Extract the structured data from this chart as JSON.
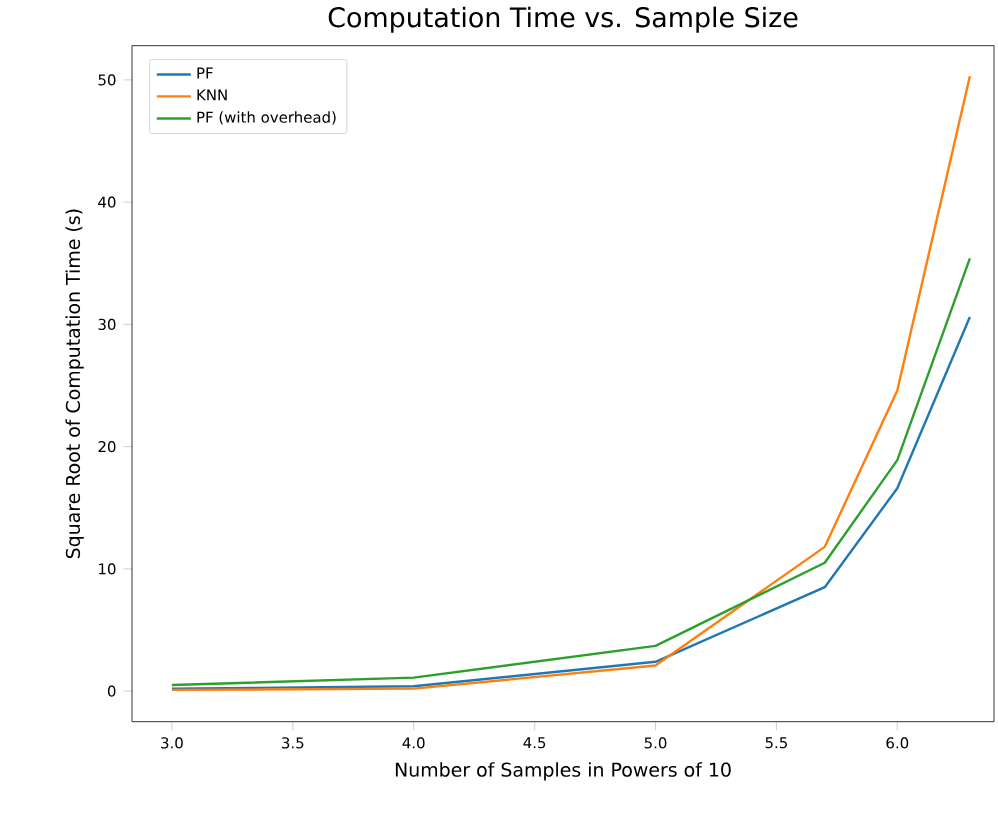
{
  "chart_data": {
    "type": "line",
    "title": "Computation Time vs. Sample Size",
    "xlabel": "Number of Samples in Powers of 10",
    "ylabel": "Square Root of Computation Time (s)",
    "x": [
      3.0,
      4.0,
      5.0,
      5.7,
      6.0,
      6.3
    ],
    "series": [
      {
        "name": "PF",
        "color": "#1f77b4",
        "values": [
          0.2,
          0.4,
          2.4,
          8.5,
          16.6,
          30.6
        ]
      },
      {
        "name": "KNN",
        "color": "#ff7f0e",
        "values": [
          0.1,
          0.2,
          2.1,
          11.8,
          24.6,
          50.3
        ]
      },
      {
        "name": "PF (with overhead)",
        "color": "#2ca02c",
        "values": [
          0.5,
          1.1,
          3.7,
          10.5,
          18.9,
          35.4
        ]
      }
    ],
    "xlim": [
      2.835,
      6.4
    ],
    "ylim": [
      -2.5,
      52.8
    ],
    "xticks": [
      {
        "value": 3.0,
        "label": "3.0"
      },
      {
        "value": 3.5,
        "label": "3.5"
      },
      {
        "value": 4.0,
        "label": "4.0"
      },
      {
        "value": 4.5,
        "label": "4.5"
      },
      {
        "value": 5.0,
        "label": "5.0"
      },
      {
        "value": 5.5,
        "label": "5.5"
      },
      {
        "value": 6.0,
        "label": "6.0"
      }
    ],
    "yticks": [
      0,
      10,
      20,
      30,
      40,
      50
    ],
    "legend": "top left",
    "grid": false,
    "marker": "none",
    "line_style": "solid"
  }
}
